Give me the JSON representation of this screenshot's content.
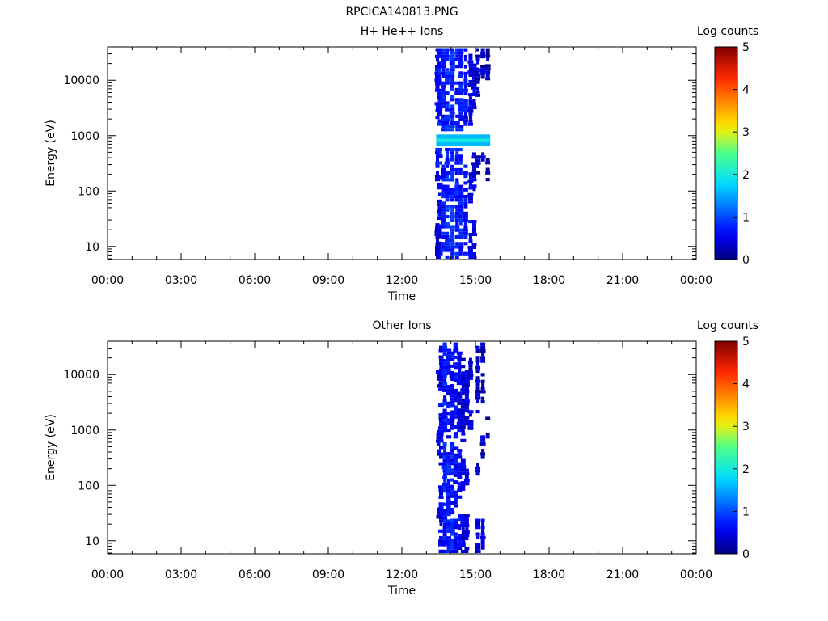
{
  "figure_title": "RPCICA140813.PNG",
  "chart_data": [
    {
      "type": "heatmap",
      "title": "H+ He++ Ions",
      "xlabel": "Time",
      "ylabel": "Energy (eV)",
      "xticks": [
        "00:00",
        "03:00",
        "06:00",
        "09:00",
        "12:00",
        "15:00",
        "18:00",
        "21:00",
        "00:00"
      ],
      "xlim_hours": [
        0,
        24
      ],
      "y_scale": "log",
      "yticks": [
        {
          "value": 10,
          "label": "10"
        },
        {
          "value": 100,
          "label": "100"
        },
        {
          "value": 1000,
          "label": "1000"
        },
        {
          "value": 10000,
          "label": "10000"
        }
      ],
      "ylim": [
        5.8,
        40000
      ],
      "colorbar": {
        "label": "Log counts",
        "range": [
          0,
          5
        ],
        "ticks": [
          "0",
          "1",
          "2",
          "3",
          "4",
          "5"
        ]
      },
      "data_window_hours": [
        13.4,
        15.6
      ],
      "columns": [
        {
          "t": 13.45,
          "cells": [
            [
              6,
              30,
              0.3
            ],
            [
              150,
              600,
              0.5
            ],
            [
              2000,
              38000,
              0.6
            ]
          ]
        },
        {
          "t": 13.55,
          "cells": [
            [
              6,
              25,
              0.5
            ],
            [
              30,
              250,
              0.6
            ],
            [
              300,
              600,
              0.7
            ],
            [
              1500,
              38000,
              0.7
            ]
          ]
        },
        {
          "t": 13.7,
          "cells": [
            [
              6,
              300,
              0.7
            ],
            [
              1200,
              38000,
              0.7
            ]
          ]
        },
        {
          "t": 13.85,
          "cells": [
            [
              6,
              600,
              0.8
            ],
            [
              1200,
              38000,
              0.8
            ]
          ]
        },
        {
          "t": 14.05,
          "cells": [
            [
              6,
              600,
              0.8
            ],
            [
              1200,
              38000,
              0.8
            ]
          ]
        },
        {
          "t": 14.25,
          "cells": [
            [
              6,
              600,
              0.7
            ],
            [
              1200,
              38000,
              0.7
            ]
          ]
        },
        {
          "t": 14.4,
          "cells": [
            [
              6,
              600,
              0.7
            ],
            [
              1200,
              38000,
              0.7
            ]
          ]
        },
        {
          "t": 14.6,
          "cells": [
            [
              6,
              300,
              0.6
            ],
            [
              1500,
              38000,
              0.6
            ]
          ]
        },
        {
          "t": 14.8,
          "cells": [
            [
              6,
              30,
              0.6
            ],
            [
              60,
              250,
              0.5
            ],
            [
              1500,
              30000,
              0.5
            ]
          ]
        },
        {
          "t": 14.95,
          "cells": [
            [
              6,
              30,
              0.5
            ],
            [
              100,
              500,
              0.4
            ],
            [
              3000,
              20000,
              0.4
            ]
          ]
        },
        {
          "t": 15.1,
          "cells": [
            [
              200,
              500,
              0.3
            ],
            [
              5000,
              38000,
              0.3
            ]
          ]
        },
        {
          "t": 15.3,
          "cells": [
            [
              300,
              500,
              0.3
            ],
            [
              8000,
              38000,
              0.3
            ]
          ]
        },
        {
          "t": 15.5,
          "cells": [
            [
              150,
              400,
              0.2
            ],
            [
              10000,
              38000,
              0.2
            ]
          ]
        }
      ],
      "band": {
        "t": [
          13.4,
          15.6
        ],
        "e": [
          640,
          1050
        ],
        "level": 1.6
      }
    },
    {
      "type": "heatmap",
      "title": "Other Ions",
      "xlabel": "Time",
      "ylabel": "Energy (eV)",
      "xticks": [
        "00:00",
        "03:00",
        "06:00",
        "09:00",
        "12:00",
        "15:00",
        "18:00",
        "21:00",
        "00:00"
      ],
      "xlim_hours": [
        0,
        24
      ],
      "y_scale": "log",
      "yticks": [
        {
          "value": 10,
          "label": "10"
        },
        {
          "value": 100,
          "label": "100"
        },
        {
          "value": 1000,
          "label": "1000"
        },
        {
          "value": 10000,
          "label": "10000"
        }
      ],
      "ylim": [
        5.8,
        40000
      ],
      "colorbar": {
        "label": "Log counts",
        "range": [
          0,
          5
        ],
        "ticks": [
          "0",
          "1",
          "2",
          "3",
          "4",
          "5"
        ]
      },
      "data_window_hours": [
        13.4,
        15.6
      ],
      "columns": [
        {
          "t": 13.5,
          "cells": [
            [
              25,
              40,
              0.5
            ],
            [
              300,
              1000,
              0.4
            ],
            [
              5000,
              12000,
              0.4
            ]
          ]
        },
        {
          "t": 13.6,
          "cells": [
            [
              6,
              100,
              0.5
            ],
            [
              200,
              3000,
              0.5
            ],
            [
              5000,
              38000,
              0.5
            ]
          ]
        },
        {
          "t": 13.75,
          "cells": [
            [
              6,
              600,
              0.7
            ],
            [
              800,
              38000,
              0.7
            ]
          ]
        },
        {
          "t": 13.9,
          "cells": [
            [
              6,
              400,
              0.7
            ],
            [
              700,
              30000,
              0.6
            ]
          ]
        },
        {
          "t": 14.05,
          "cells": [
            [
              6,
              25,
              0.8
            ],
            [
              30,
              600,
              0.7
            ],
            [
              1000,
              30000,
              0.6
            ]
          ]
        },
        {
          "t": 14.2,
          "cells": [
            [
              6,
              25,
              0.6
            ],
            [
              40,
              500,
              0.6
            ],
            [
              700,
              38000,
              0.6
            ]
          ]
        },
        {
          "t": 14.35,
          "cells": [
            [
              6,
              30,
              0.6
            ],
            [
              50,
              600,
              0.5
            ],
            [
              800,
              30000,
              0.5
            ]
          ]
        },
        {
          "t": 14.5,
          "cells": [
            [
              6,
              30,
              0.5
            ],
            [
              80,
              300,
              0.5
            ],
            [
              600,
              20000,
              0.4
            ]
          ]
        },
        {
          "t": 14.65,
          "cells": [
            [
              6,
              30,
              0.4
            ],
            [
              100,
              200,
              0.4
            ],
            [
              1200,
              12000,
              0.4
            ]
          ]
        },
        {
          "t": 14.8,
          "cells": [
            [
              1000,
              3000,
              0.3
            ],
            [
              8000,
              20000,
              0.3
            ]
          ]
        },
        {
          "t": 15.1,
          "cells": [
            [
              6,
              25,
              0.5
            ],
            [
              150,
              250,
              0.3
            ],
            [
              2000,
              38000,
              0.3
            ]
          ]
        },
        {
          "t": 15.3,
          "cells": [
            [
              6,
              25,
              0.5
            ],
            [
              300,
              800,
              0.3
            ],
            [
              3000,
              38000,
              0.3
            ]
          ]
        },
        {
          "t": 15.5,
          "cells": [
            [
              700,
              900,
              0.2
            ],
            [
              1500,
              2000,
              0.2
            ]
          ]
        }
      ],
      "band": null
    }
  ]
}
